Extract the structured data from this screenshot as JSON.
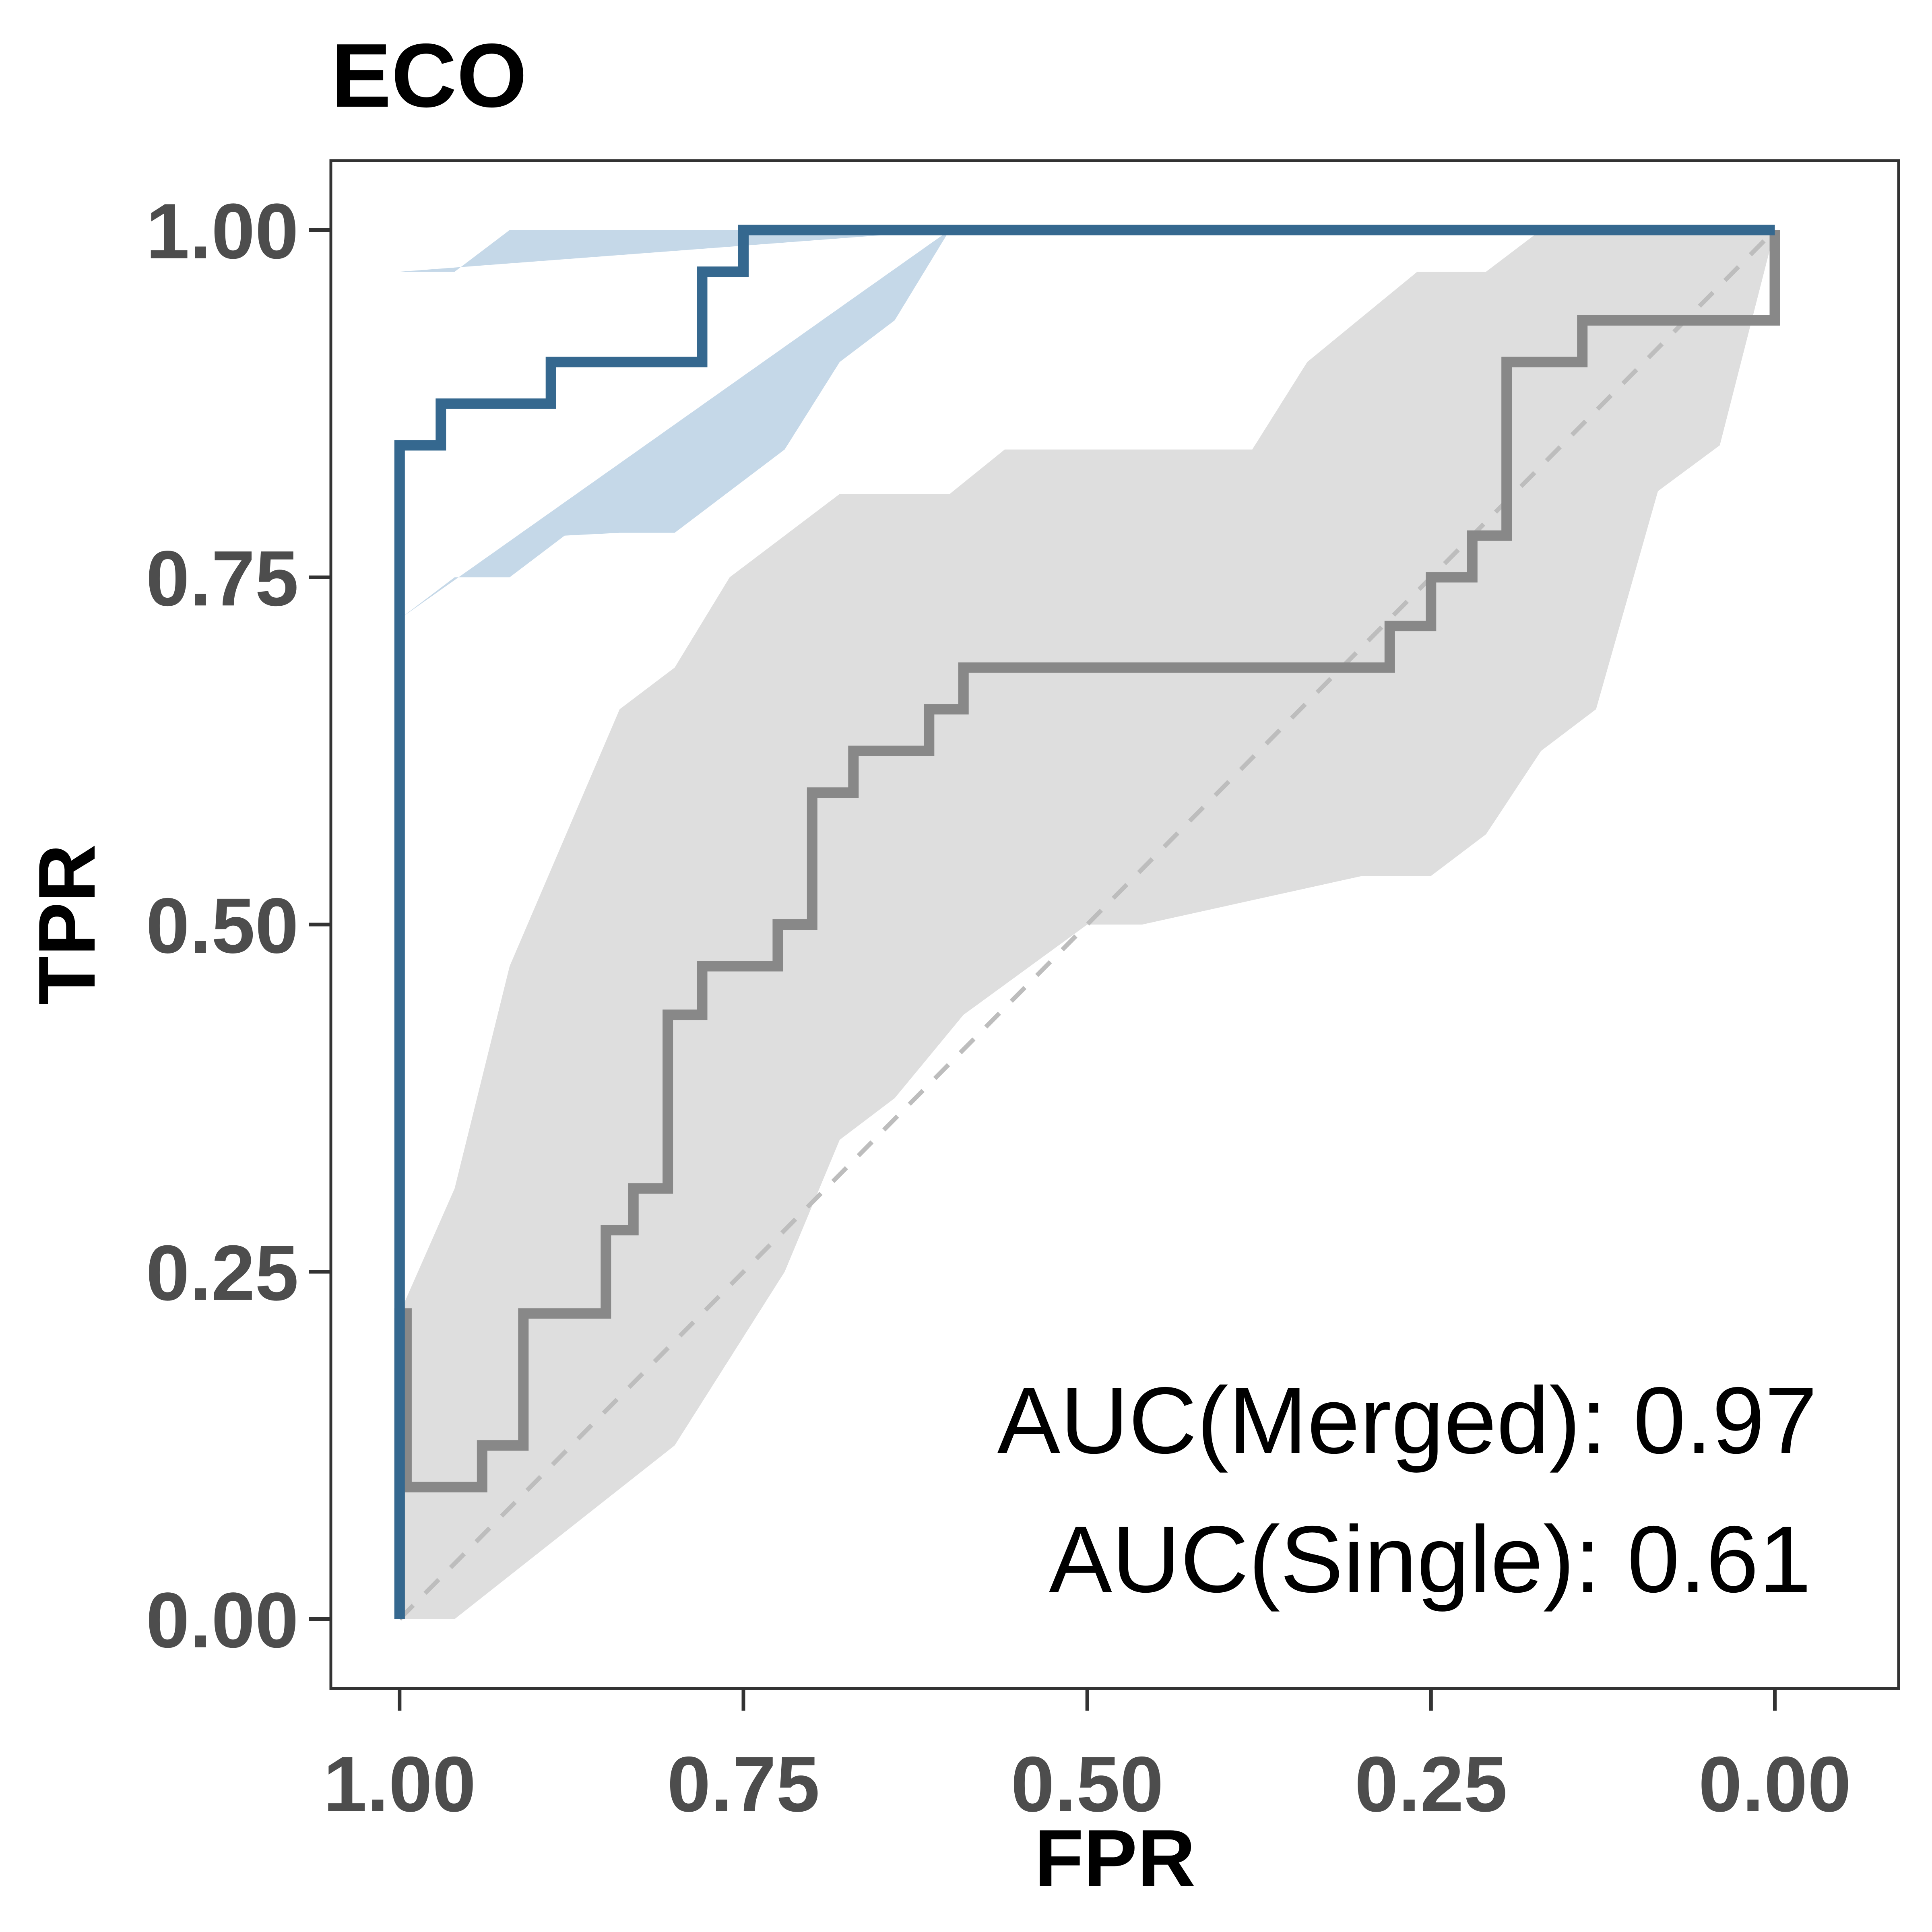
{
  "chart_data": {
    "type": "line",
    "title": "ECO",
    "xlabel": "FPR",
    "ylabel": "TPR",
    "x_reversed": true,
    "xlim": [
      1.05,
      -0.09
    ],
    "ylim": [
      -0.05,
      1.05
    ],
    "x_ticks": [
      "1.00",
      "0.75",
      "0.50",
      "0.25",
      "0.00"
    ],
    "y_ticks": [
      "1.00",
      "0.75",
      "0.50",
      "0.25",
      "0.00"
    ],
    "grid": false,
    "legend": "none",
    "annotations": [
      "AUC(Merged): 0.97",
      "AUC(Single): 0.61"
    ],
    "diagonal": {
      "x": [
        1.0,
        0.0
      ],
      "y": [
        0.0,
        1.0
      ],
      "color": "#bdbdbd",
      "style": "dashed"
    },
    "series": [
      {
        "color": "#35688f",
        "band_color": "#c5d8e8",
        "x": [
          1.0,
          1.0,
          0.97,
          0.97,
          0.89,
          0.89,
          0.78,
          0.78,
          0.75,
          0.75,
          0.0,
          0.0
        ],
        "y": [
          0.0,
          0.845,
          0.845,
          0.875,
          0.875,
          0.905,
          0.905,
          0.97,
          0.97,
          1.0,
          1.0,
          1.0
        ],
        "band_upper_x": [
          1.0,
          0.96,
          0.92,
          0.88,
          0.84,
          0.8,
          0.76,
          0.72,
          0.68,
          0.64,
          0.6
        ],
        "band_upper_y": [
          0.97,
          0.97,
          1.0,
          1.0,
          1.0,
          1.0,
          1.0,
          1.0,
          1.0,
          1.0,
          1.0
        ],
        "band_lower_x": [
          1.0,
          0.96,
          0.92,
          0.88,
          0.84,
          0.8,
          0.76,
          0.72,
          0.68,
          0.64,
          0.6
        ],
        "band_lower_y": [
          0.72,
          0.75,
          0.75,
          0.78,
          0.782,
          0.782,
          0.812,
          0.842,
          0.905,
          0.935,
          1.0
        ]
      },
      {
        "color": "#888888",
        "band_color": "#dedede",
        "x": [
          1.0,
          1.0,
          0.995,
          0.995,
          0.94,
          0.94,
          0.91,
          0.91,
          0.85,
          0.85,
          0.83,
          0.83,
          0.805,
          0.805,
          0.78,
          0.78,
          0.725,
          0.725,
          0.7,
          0.7,
          0.67,
          0.67,
          0.615,
          0.615,
          0.59,
          0.59,
          0.28,
          0.28,
          0.25,
          0.25,
          0.22,
          0.22,
          0.195,
          0.195,
          0.14,
          0.14,
          0.0,
          0.0
        ],
        "y": [
          0.0,
          0.22,
          0.22,
          0.095,
          0.095,
          0.125,
          0.125,
          0.22,
          0.22,
          0.28,
          0.28,
          0.31,
          0.31,
          0.435,
          0.435,
          0.47,
          0.47,
          0.5,
          0.5,
          0.595,
          0.595,
          0.625,
          0.625,
          0.655,
          0.655,
          0.685,
          0.685,
          0.715,
          0.715,
          0.75,
          0.75,
          0.78,
          0.78,
          0.905,
          0.905,
          0.935,
          0.935,
          1.0
        ],
        "band_upper_x": [
          1.0,
          0.96,
          0.92,
          0.84,
          0.8,
          0.76,
          0.68,
          0.6,
          0.56,
          0.38,
          0.34,
          0.26,
          0.21,
          0.17,
          0.0
        ],
        "band_upper_y": [
          0.22,
          0.31,
          0.47,
          0.655,
          0.685,
          0.75,
          0.81,
          0.81,
          0.842,
          0.842,
          0.905,
          0.97,
          0.97,
          1.0,
          1.0
        ],
        "band_lower_x": [
          0.0,
          0.04,
          0.085,
          0.13,
          0.17,
          0.21,
          0.25,
          0.28,
          0.3,
          0.46,
          0.5,
          0.59,
          0.64,
          0.68,
          0.72,
          0.8,
          0.96,
          1.0
        ],
        "band_lower_y": [
          1.0,
          0.845,
          0.812,
          0.655,
          0.625,
          0.565,
          0.535,
          0.535,
          0.535,
          0.5,
          0.5,
          0.435,
          0.375,
          0.345,
          0.25,
          0.125,
          0.0,
          0.0
        ]
      }
    ]
  }
}
